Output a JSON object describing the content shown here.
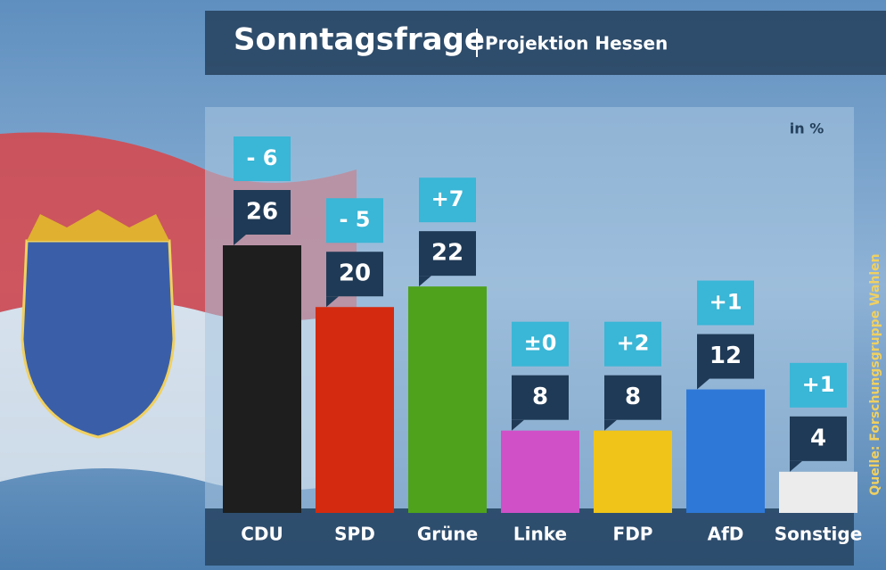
{
  "chart_data": {
    "type": "bar",
    "title": "Sonntagsfrage",
    "subtitle": "Projektion Hessen",
    "unit_label": "in %",
    "source": "Quelle: Forschungsgruppe Wahlen",
    "categories": [
      "CDU",
      "SPD",
      "Grüne",
      "Linke",
      "FDP",
      "AfD",
      "Sonstige"
    ],
    "values": [
      26,
      20,
      22,
      8,
      8,
      12,
      4
    ],
    "changes": [
      "- 6",
      "- 5",
      "+7",
      "±0",
      "+2",
      "+1",
      "+1"
    ],
    "colors": [
      "#1e1e1e",
      "#d42a10",
      "#4ea21c",
      "#d050c8",
      "#f0c418",
      "#2e78d8",
      "#ececec"
    ]
  }
}
